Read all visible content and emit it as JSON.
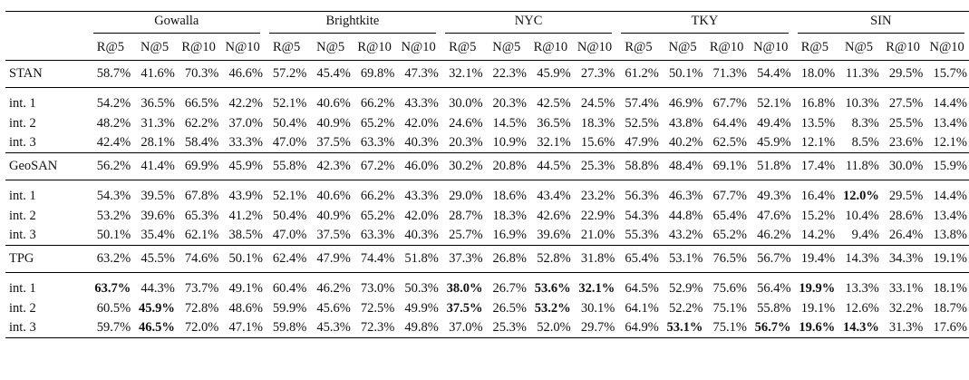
{
  "groups": [
    "Gowalla",
    "Brightkite",
    "NYC",
    "TKY",
    "SIN"
  ],
  "metrics": [
    "R@5",
    "N@5",
    "R@10",
    "N@10"
  ],
  "rows": [
    {
      "label": "STAN",
      "kind": "model",
      "values": [
        "58.7%",
        "41.6%",
        "70.3%",
        "46.6%",
        "57.2%",
        "45.4%",
        "69.8%",
        "47.3%",
        "32.1%",
        "22.3%",
        "45.9%",
        "27.3%",
        "61.2%",
        "50.1%",
        "71.3%",
        "54.4%",
        "18.0%",
        "11.3%",
        "29.5%",
        "15.7%"
      ],
      "bold": []
    },
    {
      "label": "int. 1",
      "kind": "int",
      "values": [
        "54.2%",
        "36.5%",
        "66.5%",
        "42.2%",
        "52.1%",
        "40.6%",
        "66.2%",
        "43.3%",
        "30.0%",
        "20.3%",
        "42.5%",
        "24.5%",
        "57.4%",
        "46.9%",
        "67.7%",
        "52.1%",
        "16.8%",
        "10.3%",
        "27.5%",
        "14.4%"
      ],
      "bold": []
    },
    {
      "label": "int. 2",
      "kind": "int",
      "values": [
        "48.2%",
        "31.3%",
        "62.2%",
        "37.0%",
        "50.4%",
        "40.9%",
        "65.2%",
        "42.0%",
        "24.6%",
        "14.5%",
        "36.5%",
        "18.3%",
        "52.5%",
        "43.8%",
        "64.4%",
        "49.4%",
        "13.5%",
        "8.3%",
        "25.5%",
        "13.4%"
      ],
      "bold": []
    },
    {
      "label": "int. 3",
      "kind": "int",
      "values": [
        "42.4%",
        "28.1%",
        "58.4%",
        "33.3%",
        "47.0%",
        "37.5%",
        "63.3%",
        "40.3%",
        "20.3%",
        "10.9%",
        "32.1%",
        "15.6%",
        "47.9%",
        "40.2%",
        "62.5%",
        "45.9%",
        "12.1%",
        "8.5%",
        "23.6%",
        "12.1%"
      ],
      "bold": []
    },
    {
      "label": "GeoSAN",
      "kind": "model",
      "values": [
        "56.2%",
        "41.4%",
        "69.9%",
        "45.9%",
        "55.8%",
        "42.3%",
        "67.2%",
        "46.0%",
        "30.2%",
        "20.8%",
        "44.5%",
        "25.3%",
        "58.8%",
        "48.4%",
        "69.1%",
        "51.8%",
        "17.4%",
        "11.8%",
        "30.0%",
        "15.9%"
      ],
      "bold": []
    },
    {
      "label": "int. 1",
      "kind": "int",
      "values": [
        "54.3%",
        "39.5%",
        "67.8%",
        "43.9%",
        "52.1%",
        "40.6%",
        "66.2%",
        "43.3%",
        "29.0%",
        "18.6%",
        "43.4%",
        "23.2%",
        "56.3%",
        "46.3%",
        "67.7%",
        "49.3%",
        "16.4%",
        "12.0%",
        "29.5%",
        "14.4%"
      ],
      "bold": [
        17
      ]
    },
    {
      "label": "int. 2",
      "kind": "int",
      "values": [
        "53.2%",
        "39.6%",
        "65.3%",
        "41.2%",
        "50.4%",
        "40.9%",
        "65.2%",
        "42.0%",
        "28.7%",
        "18.3%",
        "42.6%",
        "22.9%",
        "54.3%",
        "44.8%",
        "65.4%",
        "47.6%",
        "15.2%",
        "10.4%",
        "28.6%",
        "13.4%"
      ],
      "bold": []
    },
    {
      "label": "int. 3",
      "kind": "int",
      "values": [
        "50.1%",
        "35.4%",
        "62.1%",
        "38.5%",
        "47.0%",
        "37.5%",
        "63.3%",
        "40.3%",
        "25.7%",
        "16.9%",
        "39.6%",
        "21.0%",
        "55.3%",
        "43.2%",
        "65.2%",
        "46.2%",
        "14.2%",
        "9.4%",
        "26.4%",
        "13.8%"
      ],
      "bold": []
    },
    {
      "label": "TPG",
      "kind": "model",
      "values": [
        "63.2%",
        "45.5%",
        "74.6%",
        "50.1%",
        "62.4%",
        "47.9%",
        "74.4%",
        "51.8%",
        "37.3%",
        "26.8%",
        "52.8%",
        "31.8%",
        "65.4%",
        "53.1%",
        "76.5%",
        "56.7%",
        "19.4%",
        "14.3%",
        "34.3%",
        "19.1%"
      ],
      "bold": []
    },
    {
      "label": "int. 1",
      "kind": "int",
      "values": [
        "63.7%",
        "44.3%",
        "73.7%",
        "49.1%",
        "60.4%",
        "46.2%",
        "73.0%",
        "50.3%",
        "38.0%",
        "26.7%",
        "53.6%",
        "32.1%",
        "64.5%",
        "52.9%",
        "75.6%",
        "56.4%",
        "19.9%",
        "13.3%",
        "33.1%",
        "18.1%"
      ],
      "bold": [
        0,
        8,
        10,
        11,
        16
      ]
    },
    {
      "label": "int. 2",
      "kind": "int",
      "values": [
        "60.5%",
        "45.9%",
        "72.8%",
        "48.6%",
        "59.9%",
        "45.6%",
        "72.5%",
        "49.9%",
        "37.5%",
        "26.5%",
        "53.2%",
        "30.1%",
        "64.1%",
        "52.2%",
        "75.1%",
        "55.8%",
        "19.1%",
        "12.6%",
        "32.2%",
        "18.7%"
      ],
      "bold": [
        1,
        8,
        10
      ]
    },
    {
      "label": "int. 3",
      "kind": "int",
      "values": [
        "59.7%",
        "46.5%",
        "72.0%",
        "47.1%",
        "59.8%",
        "45.3%",
        "72.3%",
        "49.8%",
        "37.0%",
        "25.3%",
        "52.0%",
        "29.7%",
        "64.9%",
        "53.1%",
        "75.1%",
        "56.7%",
        "19.6%",
        "14.3%",
        "31.3%",
        "17.6%"
      ],
      "bold": [
        1,
        13,
        15,
        16,
        17
      ]
    }
  ]
}
